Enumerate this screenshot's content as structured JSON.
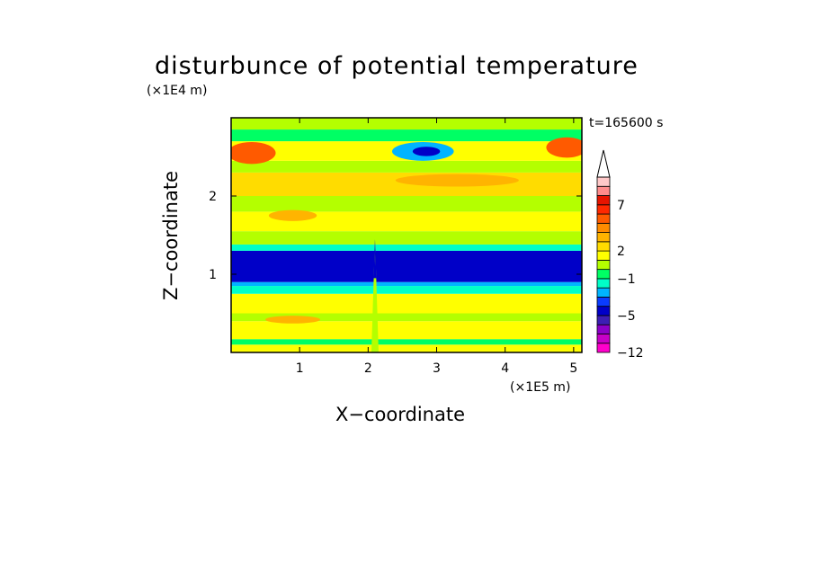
{
  "chart_data": {
    "type": "heatmap",
    "title": "disturbunce of potential temperature",
    "xlabel": "X−coordinate",
    "ylabel": "Z−coordinate",
    "x_unit": "(×1E5 m)",
    "y_unit": "(×1E4 m)",
    "time_label": "t=165600 s",
    "xlim": [
      0,
      5.12
    ],
    "ylim": [
      0,
      3.0
    ],
    "x_ticks": [
      1,
      2,
      3,
      4,
      5
    ],
    "y_ticks": [
      1,
      2
    ],
    "colorbar": {
      "levels": [
        -12,
        -10,
        -8,
        -6,
        -5,
        -4,
        -3,
        -2,
        -1,
        0,
        1,
        2,
        3,
        4,
        5,
        6,
        7,
        8,
        9,
        10
      ],
      "tick_labels": [
        {
          "value": -12,
          "label": "−12"
        },
        {
          "value": -5,
          "label": "−5"
        },
        {
          "value": -1,
          "label": "−1"
        },
        {
          "value": 2,
          "label": "2"
        },
        {
          "value": 7,
          "label": "7"
        }
      ],
      "colors": [
        "#ff00cc",
        "#c800c8",
        "#8c00c8",
        "#3c1eb4",
        "#0000c8",
        "#0a3cff",
        "#00b4ff",
        "#00ffc8",
        "#00ff64",
        "#b4ff00",
        "#ffff00",
        "#ffdc00",
        "#ffb400",
        "#ff8c00",
        "#ff5a00",
        "#ff2800",
        "#e61400",
        "#ff8c8c",
        "#ffc8c8"
      ],
      "extend_max": true
    },
    "bands": [
      {
        "z": [
          0.0,
          0.1
        ],
        "value": 1
      },
      {
        "z": [
          0.1,
          0.17
        ],
        "value": -1
      },
      {
        "z": [
          0.17,
          0.4
        ],
        "value": 1.5
      },
      {
        "z": [
          0.4,
          0.5
        ],
        "value": 0.5
      },
      {
        "z": [
          0.5,
          0.75
        ],
        "value": 1.5
      },
      {
        "z": [
          0.75,
          0.85
        ],
        "value": -1.5
      },
      {
        "z": [
          0.85,
          0.9
        ],
        "value": -3
      },
      {
        "z": [
          0.9,
          1.3
        ],
        "value": -4.5
      },
      {
        "z": [
          1.3,
          1.38
        ],
        "value": -1.5
      },
      {
        "z": [
          1.38,
          1.55
        ],
        "value": 0.5
      },
      {
        "z": [
          1.55,
          1.8
        ],
        "value": 1.5
      },
      {
        "z": [
          1.8,
          2.0
        ],
        "value": 0.5
      },
      {
        "z": [
          2.0,
          2.3
        ],
        "value": 2.5
      },
      {
        "z": [
          2.3,
          2.45
        ],
        "value": 0.5
      },
      {
        "z": [
          2.45,
          2.7
        ],
        "value": 1.5
      },
      {
        "z": [
          2.7,
          2.85
        ],
        "value": -1
      },
      {
        "z": [
          2.85,
          3.0
        ],
        "value": 0.5
      }
    ],
    "features": [
      {
        "name": "upper-left-warm",
        "x": 0.3,
        "z": 2.55,
        "rx": 0.35,
        "rz": 0.14,
        "value": 5
      },
      {
        "name": "upper-right-warm",
        "x": 4.9,
        "z": 2.62,
        "rx": 0.3,
        "rz": 0.13,
        "value": 5
      },
      {
        "name": "upper-cold-core",
        "x": 2.8,
        "z": 2.57,
        "rx": 0.45,
        "rz": 0.12,
        "value": -3
      },
      {
        "name": "upper-cold-center",
        "x": 2.85,
        "z": 2.57,
        "rx": 0.2,
        "rz": 0.06,
        "value": -5
      },
      {
        "name": "mid-warm-1",
        "x": 3.3,
        "z": 2.2,
        "rx": 0.9,
        "rz": 0.08,
        "value": 3
      },
      {
        "name": "mid-warm-2",
        "x": 0.9,
        "z": 1.75,
        "rx": 0.35,
        "rz": 0.07,
        "value": 3
      },
      {
        "name": "low-warm-1",
        "x": 0.9,
        "z": 0.42,
        "rx": 0.4,
        "rz": 0.05,
        "value": 3
      },
      {
        "name": "mountain-plume",
        "x": 2.1,
        "z": 0.9,
        "rx": 0.05,
        "rz": 0.55,
        "value": 0
      }
    ]
  }
}
